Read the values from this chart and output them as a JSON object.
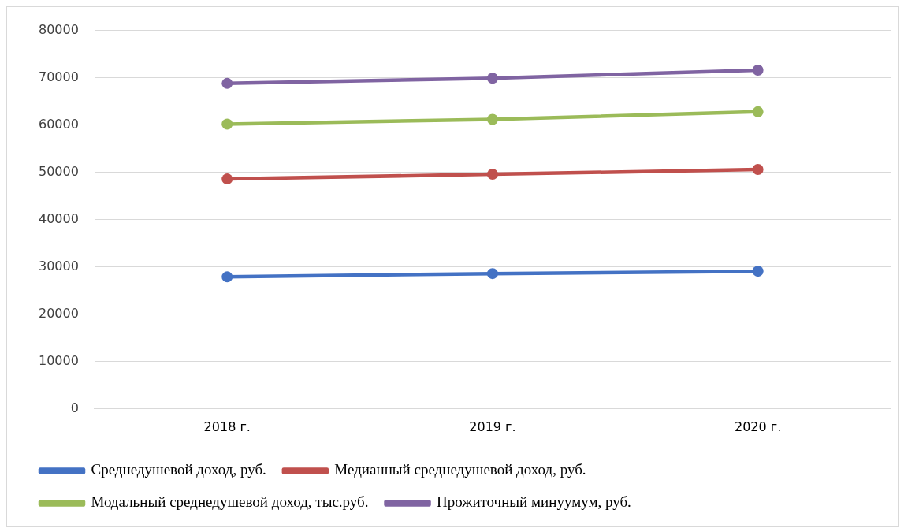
{
  "chart_data": {
    "type": "line",
    "categories": [
      "2018 г.",
      "2019 г.",
      "2020 г."
    ],
    "series": [
      {
        "name": "Среднедушевой доход, руб.",
        "color": "#4472c4",
        "values": [
          27900,
          28600,
          29100
        ]
      },
      {
        "name": "Медианный среднедушевой доход, руб.",
        "color": "#c0504d",
        "values": [
          48600,
          49600,
          50600
        ]
      },
      {
        "name": "Модальный среднедушевой доход, тыс.руб.",
        "color": "#9bbb59",
        "values": [
          60200,
          61200,
          62800
        ]
      },
      {
        "name": "Прожиточный минуумум, руб.",
        "color": "#8064a2",
        "values": [
          68800,
          69900,
          71600
        ]
      }
    ],
    "ylim": [
      0,
      80000
    ],
    "yticks": [
      0,
      10000,
      20000,
      30000,
      40000,
      50000,
      60000,
      70000,
      80000
    ],
    "grid": "y",
    "legend": "bottom",
    "marker": "circle",
    "line_style": "solid"
  }
}
